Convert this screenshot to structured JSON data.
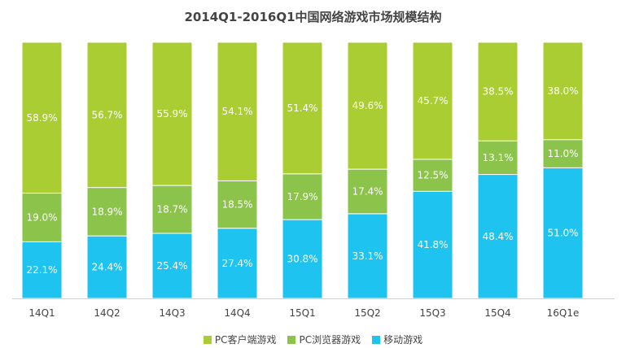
{
  "chart_data": {
    "type": "bar",
    "stacked": true,
    "title": "2014Q1-2016Q1中国网络游戏市场规模结构",
    "categories": [
      "14Q1",
      "14Q2",
      "14Q3",
      "14Q4",
      "15Q1",
      "15Q2",
      "15Q3",
      "15Q4",
      "16Q1e"
    ],
    "series": [
      {
        "name": "移动游戏",
        "values": [
          22.1,
          24.4,
          25.4,
          27.4,
          30.8,
          33.1,
          41.8,
          48.4,
          51.0
        ],
        "color": "#1fc3ef"
      },
      {
        "name": "PC浏览器游戏",
        "values": [
          19.0,
          18.9,
          18.7,
          18.5,
          17.9,
          17.4,
          12.5,
          13.1,
          11.0
        ],
        "color": "#8cc34a"
      },
      {
        "name": "PC客户端游戏",
        "values": [
          58.9,
          56.7,
          55.9,
          54.1,
          51.4,
          49.6,
          45.7,
          38.5,
          38.0
        ],
        "color": "#aacd34"
      }
    ],
    "legend_order": [
      "PC客户端游戏",
      "PC浏览器游戏",
      "移动游戏"
    ],
    "value_suffix": "%",
    "ylim": [
      0,
      100
    ],
    "legend_position": "bottom",
    "grid": false
  }
}
